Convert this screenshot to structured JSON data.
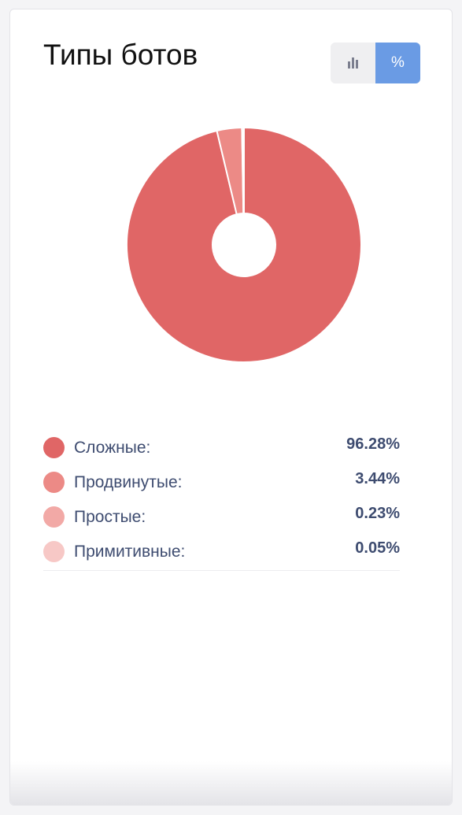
{
  "title": "Типы ботов",
  "toggle": {
    "bars_icon": "bar-chart-icon",
    "percent_label": "%"
  },
  "colors": {
    "accent": "#6a9be4",
    "slice_1": "#e06666",
    "slice_2": "#ec8a86",
    "slice_3": "#f2a9a6",
    "slice_4": "#f7c8c6"
  },
  "chart_data": {
    "type": "pie",
    "donut": true,
    "categories": [
      "Сложные",
      "Продвинутые",
      "Простые",
      "Примитивные"
    ],
    "values": [
      96.28,
      3.44,
      0.23,
      0.05
    ],
    "value_labels": [
      "96.28%",
      "3.44%",
      "0.23%",
      "0.05%"
    ],
    "colors": [
      "#e06666",
      "#ec8a86",
      "#f2a9a6",
      "#f7c8c6"
    ],
    "legend_position": "bottom"
  },
  "legend": [
    {
      "label": "Сложные:",
      "value": "96.28%"
    },
    {
      "label": "Продвинутые:",
      "value": "3.44%"
    },
    {
      "label": "Простые:",
      "value": "0.23%"
    },
    {
      "label": "Примитивные:",
      "value": "0.05%"
    }
  ]
}
